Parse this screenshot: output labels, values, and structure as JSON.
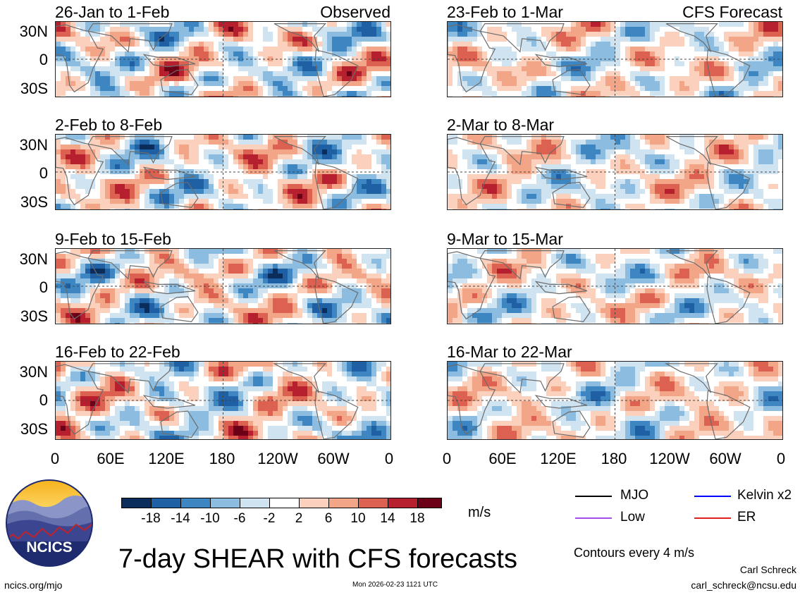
{
  "panels": [
    {
      "title": "26-Jan to 1-Feb",
      "tag": "Observed",
      "source": "obs"
    },
    {
      "title": "2-Feb to 8-Feb",
      "tag": "",
      "source": "obs"
    },
    {
      "title": "9-Feb to 15-Feb",
      "tag": "",
      "source": "obs"
    },
    {
      "title": "16-Feb to 22-Feb",
      "tag": "",
      "source": "obs"
    },
    {
      "title": "23-Feb to 1-Mar",
      "tag": "CFS Forecast",
      "source": "cfs"
    },
    {
      "title": "2-Mar to 8-Mar",
      "tag": "",
      "source": "cfs"
    },
    {
      "title": "9-Mar to 15-Mar",
      "tag": "",
      "source": "cfs"
    },
    {
      "title": "16-Mar to 22-Mar",
      "tag": "",
      "source": "cfs"
    }
  ],
  "lat_ticks": [
    "30N",
    "0",
    "30S"
  ],
  "lon_ticks": [
    "0",
    "60E",
    "120E",
    "180",
    "120W",
    "60W",
    "0"
  ],
  "colorbar": {
    "labels": [
      "-18",
      "-14",
      "-10",
      "-6",
      "-2",
      "2",
      "6",
      "10",
      "14",
      "18"
    ],
    "colors": [
      "#0b2d5b",
      "#1f5fa3",
      "#3d86c2",
      "#8cbde0",
      "#cfe3f1",
      "#ffffff",
      "#fbd0bd",
      "#f3a587",
      "#dd6150",
      "#b51f2e",
      "#6b0016"
    ],
    "units": "m/s"
  },
  "legend": {
    "items": [
      {
        "label": "MJO",
        "color": "#000000"
      },
      {
        "label": "Kelvin x2",
        "color": "#0000ff"
      },
      {
        "label": "Low",
        "color": "#a64ee6"
      },
      {
        "label": "ER",
        "color": "#e0201a"
      }
    ],
    "note": "Contours every 4 m/s"
  },
  "footer": {
    "main_title": "7-day SHEAR with CFS forecasts",
    "logo_text": "NCICS",
    "url": "ncics.org/mjo",
    "timestamp": "Mon 2026-02-23 1121 UTC",
    "author": "Carl Schreck",
    "email": "carl_schreck@ncsu.edu"
  }
}
